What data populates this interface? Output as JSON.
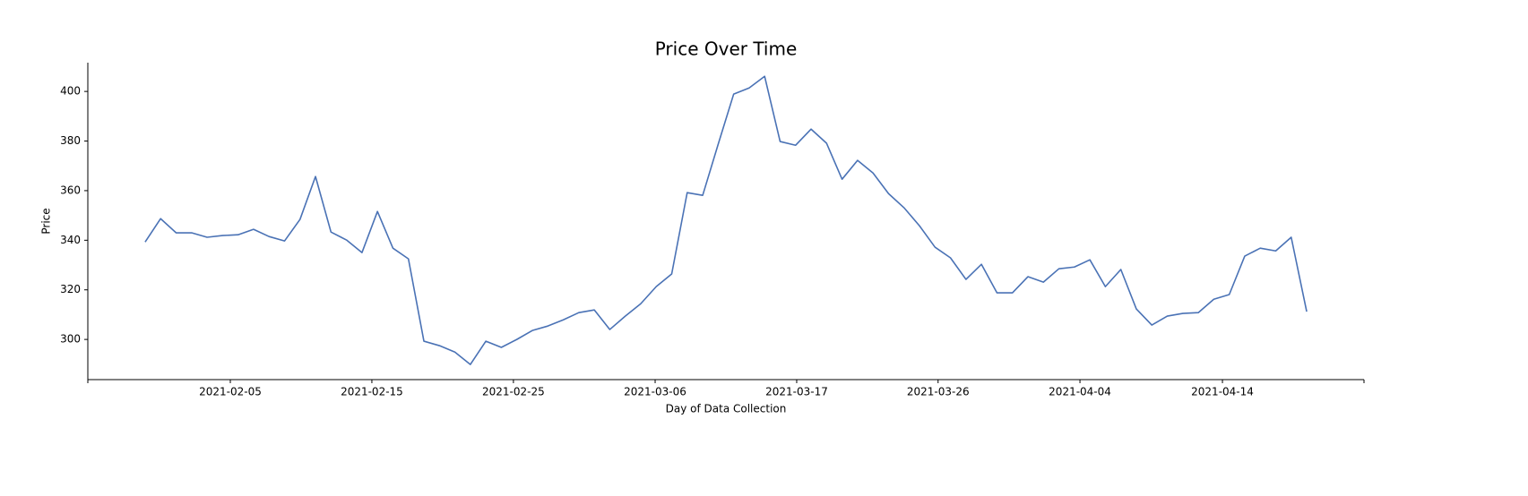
{
  "chart_data": {
    "type": "line",
    "title": "Price Over Time",
    "xlabel": "Day of Data Collection",
    "ylabel": "Price",
    "x": [
      0,
      1,
      2,
      3,
      4,
      5,
      6,
      7,
      8,
      9,
      10,
      11,
      12,
      13,
      14,
      15,
      16,
      17,
      18,
      19,
      20,
      21,
      22,
      23,
      24,
      25,
      26,
      27,
      28,
      29,
      30,
      31,
      32,
      33,
      34,
      35,
      36,
      37,
      38,
      39,
      40,
      41,
      42,
      43,
      44,
      45,
      46,
      47,
      48,
      49,
      50,
      51,
      52,
      53,
      54,
      55,
      56,
      57,
      58,
      59,
      60,
      61,
      62,
      63,
      64,
      65,
      66,
      67,
      68,
      69,
      70,
      71,
      72,
      73,
      74,
      75
    ],
    "series": [
      {
        "name": "Price",
        "color": "#4a72b5",
        "values": [
          339.3,
          348.7,
          343,
          343,
          341.2,
          341.9,
          342.2,
          344.4,
          341.5,
          339.7,
          348.4,
          365.7,
          343.3,
          340.1,
          335,
          351.6,
          336.8,
          332.5,
          299.3,
          297.5,
          294.9,
          289.9,
          299.3,
          296.8,
          300,
          303.6,
          305.4,
          307.9,
          310.8,
          311.9,
          304,
          309.4,
          314.4,
          321.3,
          326.4,
          359.2,
          358.1,
          378.7,
          398.9,
          401.4,
          406.1,
          379.8,
          378.3,
          384.8,
          379.1,
          364.6,
          372.2,
          367.1,
          358.8,
          353.1,
          345.8,
          337.2,
          332.9,
          324.2,
          330.3,
          318.8,
          318.8,
          325.3,
          323.1,
          328.5,
          329.2,
          332.1,
          321.3,
          328.2,
          312.3,
          305.8,
          309.4,
          310.5,
          310.8,
          316.2,
          318.1,
          333.6,
          336.8,
          335.7,
          341.2,
          311.2
        ]
      }
    ],
    "xlim": [
      -3.7,
      78.7
    ],
    "xticks": [
      {
        "value": 5.5,
        "label": "2021-02-05"
      },
      {
        "value": 14.64,
        "label": "2021-02-15"
      },
      {
        "value": 23.78,
        "label": "2021-02-25"
      },
      {
        "value": 32.93,
        "label": "2021-03-06"
      },
      {
        "value": 42.07,
        "label": "2021-03-17"
      },
      {
        "value": 51.2,
        "label": "2021-03-26"
      },
      {
        "value": 60.36,
        "label": "2021-04-04"
      },
      {
        "value": 69.56,
        "label": "2021-04-14"
      }
    ],
    "ylim": [
      283.8,
      411.6
    ],
    "yticks": [
      300,
      320,
      340,
      360,
      380,
      400
    ],
    "grid": false
  }
}
